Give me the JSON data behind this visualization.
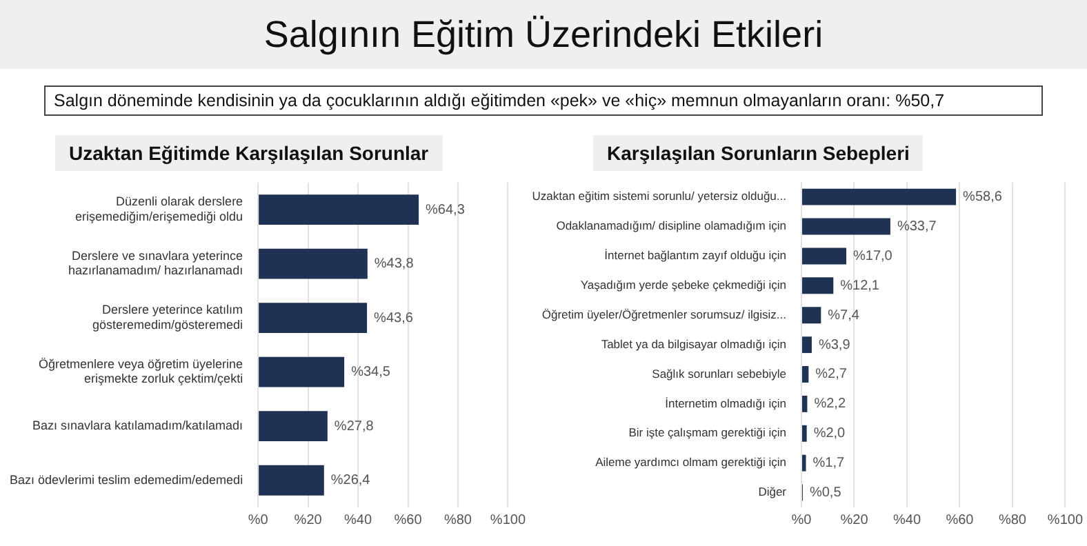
{
  "chart_data": [
    {
      "type": "other",
      "title": "Salgının Eğitim Üzerindeki Etkileri",
      "subtitle": "Salgın döneminde kendisinin ya da çocuklarının aldığı eğitimden «pek» ve «hiç» memnun olmayanların oranı: %50,7"
    },
    {
      "type": "bar",
      "orientation": "horizontal",
      "title": "Uzaktan Eğitimde Karşılaşılan Sorunlar",
      "categories": [
        "Düzenli olarak derslere erişemediğim/erişemediği oldu",
        "Derslere ve sınavlara yeterince hazırlanamadım/ hazırlanamadı",
        "Derslere yeterince katılım gösteremedim/gösteremedi",
        "Öğretmenlere veya öğretim üyelerine erişmekte zorluk çektim/çekti",
        "Bazı sınavlara katılamadım/katılamadı",
        "Bazı ödevlerimi teslim edemedim/edemedi"
      ],
      "values": [
        64.3,
        43.8,
        43.6,
        34.5,
        27.8,
        26.4
      ],
      "value_labels": [
        "%64,3",
        "%43,8",
        "%43,6",
        "%34,5",
        "%27,8",
        "%26,4"
      ],
      "color": "#1f3254",
      "xlim": [
        0,
        100
      ],
      "xticks": [
        {
          "value": 0,
          "label": "%0"
        },
        {
          "value": 20,
          "label": "%20"
        },
        {
          "value": 40,
          "label": "%40"
        },
        {
          "value": 60,
          "label": "%60"
        },
        {
          "value": 80,
          "label": "%80"
        },
        {
          "value": 100,
          "label": "%100"
        }
      ],
      "grid": "x"
    },
    {
      "type": "bar",
      "orientation": "horizontal",
      "title": "Karşılaşılan Sorunların Sebepleri",
      "categories": [
        "Uzaktan eğitim sistemi sorunlu/ yetersiz olduğu...",
        "Odaklanamadığım/ disipline olamadığım için",
        "İnternet bağlantım zayıf olduğu için",
        "Yaşadığım yerde şebeke çekmediği için",
        "Öğretim üyeler/Öğretmenler sorumsuz/ ilgisiz...",
        "Tablet ya da bilgisayar olmadığı için",
        "Sağlık sorunları sebebiyle",
        "İnternetim olmadığı için",
        "Bir işte çalışmam gerektiği için",
        "Aileme yardımcı olmam gerektiği için",
        "Diğer"
      ],
      "values": [
        58.6,
        33.7,
        17.0,
        12.1,
        7.4,
        3.9,
        2.7,
        2.2,
        2.0,
        1.7,
        0.5
      ],
      "value_labels": [
        "%58,6",
        "%33,7",
        "%17,0",
        "%12,1",
        "%7,4",
        "%3,9",
        "%2,7",
        "%2,2",
        "%2,0",
        "%1,7",
        "%0,5"
      ],
      "color": "#1f3254",
      "xlim": [
        0,
        100
      ],
      "xticks": [
        {
          "value": 0,
          "label": "%0"
        },
        {
          "value": 20,
          "label": "%20"
        },
        {
          "value": 40,
          "label": "%40"
        },
        {
          "value": 60,
          "label": "%60"
        },
        {
          "value": 80,
          "label": "%80"
        },
        {
          "value": 100,
          "label": "%100"
        }
      ],
      "grid": "x"
    }
  ]
}
